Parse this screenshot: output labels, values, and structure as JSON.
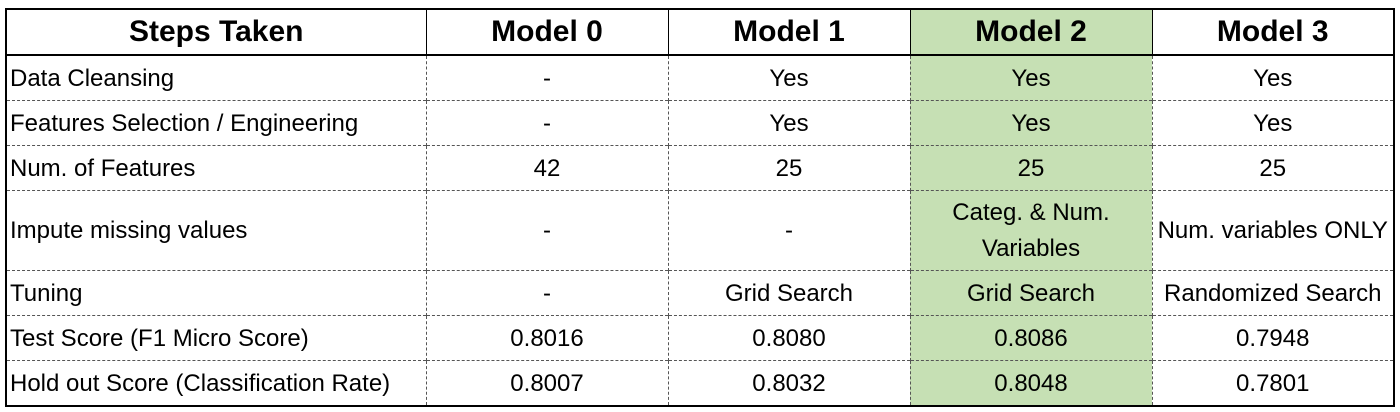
{
  "table": {
    "headers": [
      "Steps Taken",
      "Model 0",
      "Model 1",
      "Model 2",
      "Model 3"
    ],
    "highlight_color": "#c6e0b4",
    "highlighted_column": "Model 2",
    "rows": [
      {
        "label": "Data Cleansing",
        "values": [
          "-",
          "Yes",
          "Yes",
          "Yes"
        ]
      },
      {
        "label": "Features Selection / Engineering",
        "values": [
          "-",
          "Yes",
          "Yes",
          "Yes"
        ]
      },
      {
        "label": "Num. of Features",
        "values": [
          "42",
          "25",
          "25",
          "25"
        ]
      },
      {
        "label": "Impute missing values",
        "values": [
          "-",
          "-",
          "Categ. & Num. Variables",
          "Num. variables ONLY"
        ]
      },
      {
        "label": "Tuning",
        "values": [
          "-",
          "Grid Search",
          "Grid Search",
          "Randomized Search"
        ]
      },
      {
        "label": "Test Score (F1 Micro Score)",
        "values": [
          "0.8016",
          "0.8080",
          "0.8086",
          "0.7948"
        ]
      },
      {
        "label": "Hold out Score (Classification Rate)",
        "values": [
          "0.8007",
          "0.8032",
          "0.8048",
          "0.7801"
        ]
      }
    ]
  }
}
